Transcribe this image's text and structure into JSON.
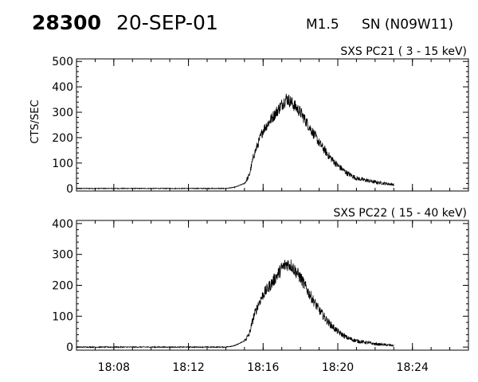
{
  "header": {
    "observation_number": "28300",
    "date": "20-SEP-01",
    "flare_class": "M1.5",
    "location": "SN (N09W11)"
  },
  "chart_data": [
    {
      "type": "line",
      "title": "SXS PC21  (  3 - 15 keV)",
      "xlabel": "",
      "ylabel": "CTS/SEC",
      "xlim": [
        "18:06",
        "18:27"
      ],
      "ylim": [
        -10,
        510
      ],
      "yticks": [
        0,
        100,
        200,
        300,
        400,
        500
      ],
      "xtick_labels": [],
      "series": [
        {
          "x": [
            "18:06",
            "18:10",
            "18:14",
            "18:14:30",
            "18:15",
            "18:15:15",
            "18:15:30",
            "18:15:45",
            "18:16",
            "18:16:30",
            "18:17",
            "18:17:15",
            "18:17:30",
            "18:18",
            "18:18:30",
            "18:19",
            "18:19:30",
            "18:20",
            "18:20:30",
            "18:21",
            "18:22",
            "18:23"
          ],
          "y": [
            0,
            0,
            0,
            5,
            20,
            50,
            130,
            180,
            230,
            280,
            330,
            355,
            340,
            300,
            240,
            180,
            130,
            90,
            60,
            40,
            25,
            15
          ]
        }
      ]
    },
    {
      "type": "line",
      "title": "SXS PC22  ( 15 - 40 keV)",
      "xlabel": "",
      "ylabel": "",
      "xlim": [
        "18:06",
        "18:27"
      ],
      "ylim": [
        -10,
        410
      ],
      "yticks": [
        0,
        100,
        200,
        300,
        400
      ],
      "xtick_labels": [
        "18:08",
        "18:12",
        "18:16",
        "18:20",
        "18:24"
      ],
      "series": [
        {
          "x": [
            "18:06",
            "18:10",
            "18:14",
            "18:14:30",
            "18:15",
            "18:15:15",
            "18:15:30",
            "18:15:45",
            "18:16",
            "18:16:30",
            "18:17",
            "18:17:15",
            "18:17:30",
            "18:18",
            "18:18:30",
            "18:19",
            "18:19:30",
            "18:20",
            "18:20:30",
            "18:21",
            "18:22",
            "18:23"
          ],
          "y": [
            0,
            0,
            0,
            5,
            20,
            40,
            100,
            140,
            170,
            210,
            255,
            270,
            265,
            225,
            170,
            120,
            80,
            50,
            30,
            20,
            10,
            5
          ]
        }
      ]
    }
  ]
}
